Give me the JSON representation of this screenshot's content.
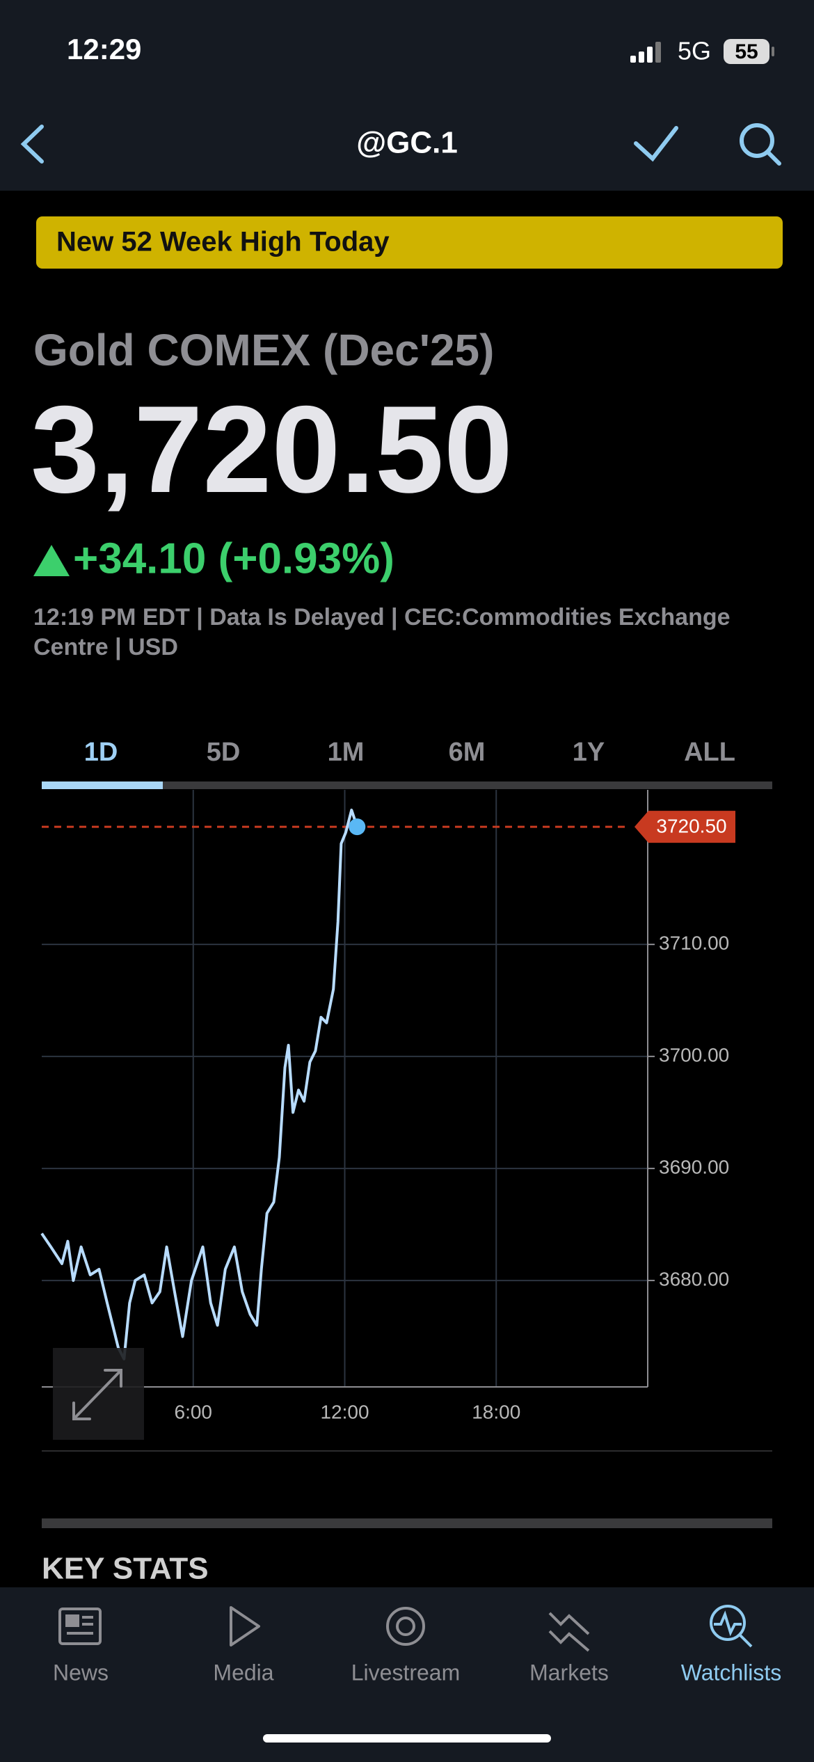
{
  "status_bar": {
    "time": "12:29",
    "network": "5G",
    "battery": "55"
  },
  "nav": {
    "title": "@GC.1"
  },
  "banner": "New 52 Week High Today",
  "quote": {
    "name": "Gold COMEX (Dec'25)",
    "price": "3,720.50",
    "change": "+34.10 (+0.93%)",
    "info": "12:19 PM EDT | Data Is Delayed | CEC:Commodities Exchange Centre | USD"
  },
  "ranges": [
    "1D",
    "5D",
    "1M",
    "6M",
    "1Y",
    "ALL"
  ],
  "chart_data": {
    "type": "line",
    "x": [
      0,
      0.36,
      0.8,
      1.03,
      1.25,
      1.56,
      1.92,
      2.27,
      2.59,
      2.81,
      3.03,
      3.26,
      3.48,
      3.7,
      4.06,
      4.37,
      4.68,
      4.95,
      5.26,
      5.58,
      5.93,
      6.38,
      6.69,
      6.96,
      7.27,
      7.63,
      7.94,
      8.25,
      8.52,
      8.7,
      8.92,
      9.19,
      9.41,
      9.63,
      9.77,
      9.95,
      10.17,
      10.39,
      10.62,
      10.84,
      11.06,
      11.28,
      11.55,
      11.73,
      11.86,
      12.04,
      12.27,
      12.49
    ],
    "values": [
      3684.2,
      3683,
      3681.5,
      3683.5,
      3680,
      3683,
      3680.5,
      3681,
      3678,
      3676,
      3674,
      3673,
      3678,
      3680,
      3680.5,
      3678,
      3679,
      3683,
      3679,
      3675,
      3680,
      3683,
      3678,
      3676,
      3681,
      3683,
      3679,
      3677,
      3676,
      3681,
      3686,
      3687,
      3691,
      3699,
      3701,
      3695,
      3697,
      3696,
      3699.5,
      3700.5,
      3703.5,
      3703,
      3706,
      3712,
      3719,
      3720,
      3722,
      3720.5
    ],
    "color": "#b8dcff",
    "xlim": [
      0,
      24
    ],
    "ylim": [
      3670.5,
      3723.8
    ],
    "xticks": [
      {
        "value": 6,
        "label": "6:00"
      },
      {
        "value": 12,
        "label": "12:00"
      },
      {
        "value": 18,
        "label": "18:00"
      }
    ],
    "yticks": [
      {
        "value": 3680,
        "label": "3680.00"
      },
      {
        "value": 3690,
        "label": "3690.00"
      },
      {
        "value": 3700,
        "label": "3700.00"
      },
      {
        "value": 3710,
        "label": "3710.00"
      }
    ],
    "grid": true,
    "reference": {
      "value": 3720.5,
      "label": "3720.50",
      "color": "#c83a20"
    }
  },
  "section_title": "KEY STATS",
  "tab_bar": [
    "News",
    "Media",
    "Livestream",
    "Markets",
    "Watchlists"
  ]
}
